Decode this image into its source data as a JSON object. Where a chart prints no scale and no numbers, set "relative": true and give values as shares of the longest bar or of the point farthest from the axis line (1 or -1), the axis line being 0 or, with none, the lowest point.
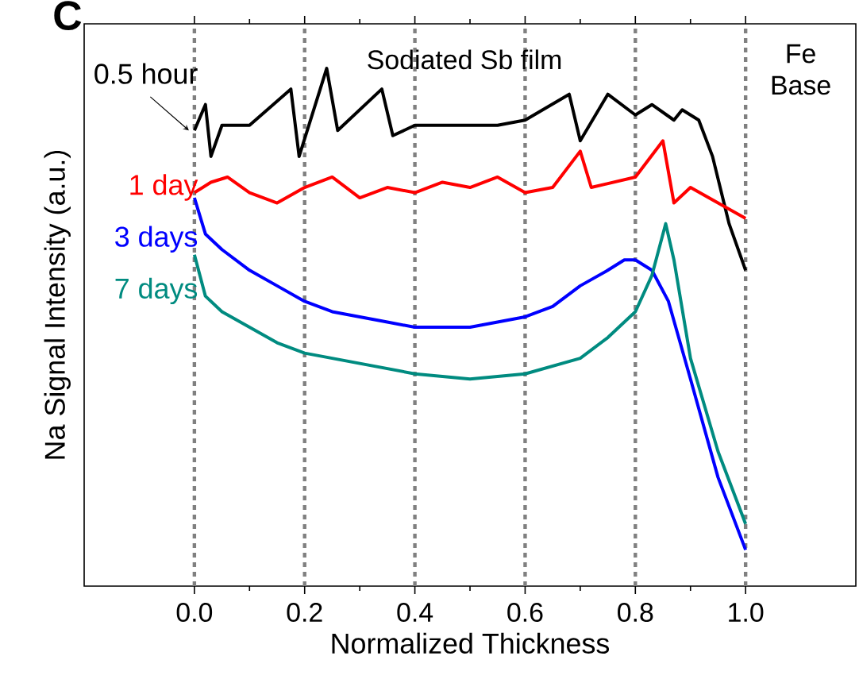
{
  "chart_data": {
    "type": "line",
    "relative": true,
    "xlabel": "Normalized Thickness",
    "ylabel": "Na Signal Intensity (a.u.)",
    "xlim": [
      -0.2,
      1.2
    ],
    "xticks": [
      {
        "value": 0,
        "label": "0.0"
      },
      0.2,
      0.4,
      0.6,
      0.8,
      {
        "value": 1.0,
        "label": "1.0"
      }
    ],
    "line_style": "solid",
    "marker": "none",
    "grid": false,
    "annotations": [
      "C",
      "Sodiated Sb film",
      "Fe Base"
    ],
    "ref_lines": [
      {
        "axis": "x",
        "value": 0,
        "color": "#808080",
        "line_style": "dotted"
      },
      {
        "axis": "x",
        "value": 0.2,
        "color": "#808080",
        "line_style": "dotted"
      },
      {
        "axis": "x",
        "value": 0.4,
        "color": "#808080",
        "line_style": "dotted"
      },
      {
        "axis": "x",
        "value": 0.6,
        "color": "#808080",
        "line_style": "dotted"
      },
      {
        "axis": "x",
        "value": 0.8,
        "color": "#808080",
        "line_style": "dotted"
      },
      {
        "axis": "x",
        "value": 1.0,
        "color": "#808080",
        "line_style": "dotted"
      }
    ],
    "series": [
      {
        "name": "0.5 hour",
        "color": "#000000",
        "x": [
          0,
          0.02,
          0.03,
          0.05,
          0.1,
          0.175,
          0.19,
          0.24,
          0.26,
          0.34,
          0.36,
          0.4,
          0.5,
          0.55,
          0.6,
          0.68,
          0.7,
          0.75,
          0.8,
          0.83,
          0.87,
          0.885,
          0.915,
          0.94,
          0.97,
          1.0
        ],
        "values": [
          0.88,
          0.93,
          0.83,
          0.89,
          0.89,
          0.96,
          0.83,
          1.0,
          0.88,
          0.96,
          0.87,
          0.89,
          0.89,
          0.89,
          0.9,
          0.95,
          0.86,
          0.95,
          0.91,
          0.93,
          0.9,
          0.92,
          0.9,
          0.83,
          0.7,
          0.61
        ]
      },
      {
        "name": "1 day",
        "color": "#ff0000",
        "x": [
          0,
          0.03,
          0.06,
          0.1,
          0.15,
          0.2,
          0.25,
          0.3,
          0.35,
          0.4,
          0.45,
          0.5,
          0.55,
          0.6,
          0.65,
          0.7,
          0.72,
          0.8,
          0.85,
          0.87,
          0.9,
          0.95,
          1.0
        ],
        "values": [
          0.76,
          0.78,
          0.79,
          0.76,
          0.74,
          0.77,
          0.79,
          0.75,
          0.77,
          0.76,
          0.78,
          0.77,
          0.79,
          0.76,
          0.77,
          0.84,
          0.77,
          0.79,
          0.86,
          0.74,
          0.77,
          0.74,
          0.71
        ]
      },
      {
        "name": "3 days",
        "color": "#0000ff",
        "x": [
          0,
          0.02,
          0.05,
          0.1,
          0.15,
          0.2,
          0.25,
          0.3,
          0.35,
          0.4,
          0.5,
          0.55,
          0.6,
          0.65,
          0.7,
          0.75,
          0.78,
          0.8,
          0.83,
          0.86,
          0.9,
          0.95,
          1.0
        ],
        "values": [
          0.75,
          0.68,
          0.65,
          0.61,
          0.58,
          0.55,
          0.53,
          0.52,
          0.51,
          0.5,
          0.5,
          0.51,
          0.52,
          0.54,
          0.58,
          0.61,
          0.63,
          0.63,
          0.61,
          0.55,
          0.4,
          0.21,
          0.07
        ]
      },
      {
        "name": "7 days",
        "color": "#008b80",
        "x": [
          0,
          0.02,
          0.05,
          0.1,
          0.15,
          0.2,
          0.3,
          0.4,
          0.5,
          0.6,
          0.7,
          0.75,
          0.8,
          0.83,
          0.855,
          0.87,
          0.9,
          0.95,
          1.0
        ],
        "values": [
          0.64,
          0.56,
          0.53,
          0.5,
          0.47,
          0.45,
          0.43,
          0.41,
          0.4,
          0.41,
          0.44,
          0.48,
          0.53,
          0.6,
          0.7,
          0.63,
          0.44,
          0.26,
          0.12
        ]
      }
    ]
  }
}
